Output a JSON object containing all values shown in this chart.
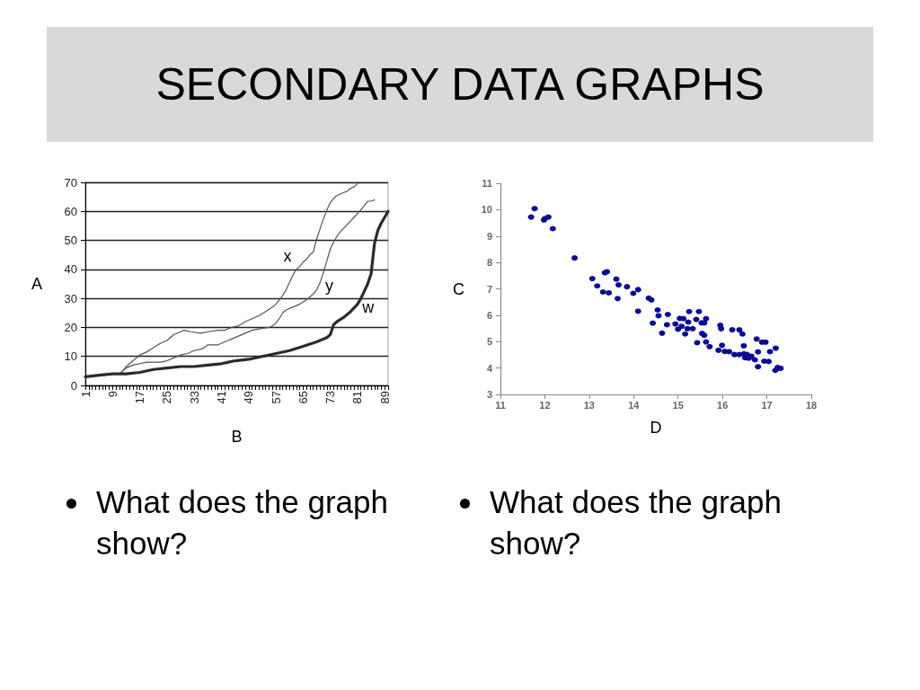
{
  "chart_data": [
    {
      "type": "line",
      "title": "SECONDARY DATA GRAPHS",
      "xlabel": "B",
      "ylabel": "A",
      "annotations": [
        "What does the graph show?"
      ],
      "xlim": [
        1,
        90
      ],
      "xticks": [
        1,
        {
          "value": 2,
          "label": null
        },
        {
          "value": 3,
          "label": null
        },
        {
          "value": 4,
          "label": null
        },
        {
          "value": 5,
          "label": null
        },
        {
          "value": 6,
          "label": null
        },
        {
          "value": 7,
          "label": null
        },
        {
          "value": 8,
          "label": null
        },
        9,
        {
          "value": 10,
          "label": null
        },
        {
          "value": 11,
          "label": null
        },
        {
          "value": 12,
          "label": null
        },
        {
          "value": 13,
          "label": null
        },
        {
          "value": 14,
          "label": null
        },
        {
          "value": 15,
          "label": null
        },
        {
          "value": 16,
          "label": null
        },
        17,
        {
          "value": 18,
          "label": null
        },
        {
          "value": 19,
          "label": null
        },
        {
          "value": 20,
          "label": null
        },
        {
          "value": 21,
          "label": null
        },
        {
          "value": 22,
          "label": null
        },
        {
          "value": 23,
          "label": null
        },
        {
          "value": 24,
          "label": null
        },
        25,
        {
          "value": 26,
          "label": null
        },
        {
          "value": 27,
          "label": null
        },
        {
          "value": 28,
          "label": null
        },
        {
          "value": 29,
          "label": null
        },
        {
          "value": 30,
          "label": null
        },
        {
          "value": 31,
          "label": null
        },
        {
          "value": 32,
          "label": null
        },
        33,
        {
          "value": 34,
          "label": null
        },
        {
          "value": 35,
          "label": null
        },
        {
          "value": 36,
          "label": null
        },
        {
          "value": 37,
          "label": null
        },
        {
          "value": 38,
          "label": null
        },
        {
          "value": 39,
          "label": null
        },
        {
          "value": 40,
          "label": null
        },
        41,
        {
          "value": 42,
          "label": null
        },
        {
          "value": 43,
          "label": null
        },
        {
          "value": 44,
          "label": null
        },
        {
          "value": 45,
          "label": null
        },
        {
          "value": 46,
          "label": null
        },
        {
          "value": 47,
          "label": null
        },
        {
          "value": 48,
          "label": null
        },
        49,
        {
          "value": 50,
          "label": null
        },
        {
          "value": 51,
          "label": null
        },
        {
          "value": 52,
          "label": null
        },
        {
          "value": 53,
          "label": null
        },
        {
          "value": 54,
          "label": null
        },
        {
          "value": 55,
          "label": null
        },
        {
          "value": 56,
          "label": null
        },
        57,
        {
          "value": 58,
          "label": null
        },
        {
          "value": 59,
          "label": null
        },
        {
          "value": 60,
          "label": null
        },
        {
          "value": 61,
          "label": null
        },
        {
          "value": 62,
          "label": null
        },
        {
          "value": 63,
          "label": null
        },
        {
          "value": 64,
          "label": null
        },
        65,
        {
          "value": 66,
          "label": null
        },
        {
          "value": 67,
          "label": null
        },
        {
          "value": 68,
          "label": null
        },
        {
          "value": 69,
          "label": null
        },
        {
          "value": 70,
          "label": null
        },
        {
          "value": 71,
          "label": null
        },
        {
          "value": 72,
          "label": null
        },
        73,
        {
          "value": 74,
          "label": null
        },
        {
          "value": 75,
          "label": null
        },
        {
          "value": 76,
          "label": null
        },
        {
          "value": 77,
          "label": null
        },
        {
          "value": 78,
          "label": null
        },
        {
          "value": 79,
          "label": null
        },
        {
          "value": 80,
          "label": null
        },
        81,
        {
          "value": 82,
          "label": null
        },
        {
          "value": 83,
          "label": null
        },
        {
          "value": 84,
          "label": null
        },
        {
          "value": 85,
          "label": null
        },
        {
          "value": 86,
          "label": null
        },
        {
          "value": 87,
          "label": null
        },
        {
          "value": 88,
          "label": null
        },
        89,
        {
          "value": 90,
          "label": null
        }
      ],
      "ylim": [
        0,
        70
      ],
      "yticks": [
        0,
        10,
        20,
        30,
        40,
        50,
        60,
        70
      ],
      "grid": "y",
      "marker": "none",
      "line_style": "solid",
      "series": [
        {
          "name": "x",
          "color": "#555555",
          "x": [
            11,
            12,
            13,
            15,
            17,
            19,
            21,
            23,
            25,
            27,
            29,
            30,
            32,
            35,
            37,
            40,
            42,
            44,
            46,
            48,
            50,
            52,
            54,
            56,
            57,
            58,
            59,
            60,
            61,
            62,
            63,
            64,
            65,
            66,
            67,
            68,
            69,
            70,
            71,
            72,
            73,
            74,
            75,
            77,
            78,
            79,
            80,
            81
          ],
          "values": [
            4,
            5,
            6.5,
            8.5,
            10.5,
            11.5,
            13,
            14.5,
            15.5,
            17.5,
            18.5,
            19,
            18.5,
            18,
            18.5,
            19,
            19,
            20,
            20.5,
            22,
            23,
            24,
            25.5,
            27,
            28,
            29.5,
            31,
            33,
            35.5,
            38,
            40,
            41,
            42.5,
            43.5,
            45,
            46,
            50.5,
            54,
            57.5,
            60.5,
            63,
            64.5,
            65.5,
            66.5,
            67,
            68,
            68.5,
            69.5
          ]
        },
        {
          "name": "y",
          "color": "#555555",
          "x": [
            11,
            12,
            13,
            15,
            17,
            19,
            23,
            25,
            27,
            29,
            31,
            33,
            35,
            36,
            37,
            40,
            42,
            44,
            46,
            48,
            50,
            52,
            55,
            56,
            57,
            58,
            59,
            60,
            62,
            64,
            66,
            68,
            69,
            70,
            71,
            72,
            73,
            74,
            75,
            76,
            78,
            80,
            82,
            84,
            85,
            86
          ],
          "values": [
            4,
            5,
            6,
            7,
            7.5,
            8,
            8,
            8.5,
            9.5,
            10.5,
            11,
            12,
            12.5,
            13,
            14,
            14,
            15,
            16,
            17,
            18,
            19,
            19.5,
            20,
            20.5,
            21.5,
            23,
            25,
            26,
            27,
            28,
            29.5,
            31.5,
            33,
            35.5,
            39,
            43,
            47,
            49.5,
            51.5,
            53,
            55.5,
            58,
            60.5,
            63.5,
            63.5,
            64
          ]
        },
        {
          "name": "w",
          "color": "#2b2b2b",
          "x": [
            1,
            5,
            9,
            13,
            17,
            21,
            25,
            29,
            33,
            37,
            41,
            45,
            49,
            53,
            57,
            61,
            65,
            69,
            72,
            73,
            74,
            75,
            77,
            79,
            81,
            82,
            83,
            84,
            85,
            86,
            87,
            88,
            89,
            90
          ],
          "values": [
            3,
            3.5,
            4,
            4,
            4.5,
            5.5,
            6,
            6.5,
            6.5,
            7,
            7.5,
            8.5,
            9,
            10,
            11,
            12,
            13.5,
            15,
            16.5,
            17.5,
            21,
            22,
            23.5,
            25.5,
            28,
            30,
            32.5,
            35,
            38.5,
            49,
            53.5,
            56,
            58,
            60
          ]
        }
      ]
    },
    {
      "type": "scatter",
      "xlabel": "D",
      "ylabel": "C",
      "annotations": [
        "What does the graph show?"
      ],
      "xlim": [
        11,
        18
      ],
      "xticks": [
        11,
        12,
        13,
        14,
        15,
        16,
        17,
        18
      ],
      "ylim": [
        3,
        11
      ],
      "yticks": [
        3,
        4,
        5,
        6,
        7,
        8,
        9,
        10,
        11
      ],
      "marker": "circle",
      "color": "#0a0a96",
      "x": [
        11.69,
        11.77,
        11.98,
        12.0,
        12.08,
        12.18,
        12.67,
        13.07,
        13.18,
        13.31,
        13.35,
        13.4,
        13.44,
        13.61,
        13.66,
        13.64,
        13.85,
        13.99,
        14.1,
        14.1,
        14.34,
        14.4,
        14.43,
        14.54,
        14.56,
        14.64,
        14.75,
        14.77,
        14.94,
        15.0,
        15.04,
        15.08,
        15.12,
        15.16,
        15.21,
        15.23,
        15.25,
        15.33,
        15.41,
        15.43,
        15.47,
        15.53,
        15.54,
        15.59,
        15.59,
        15.63,
        15.63,
        15.71,
        15.91,
        15.95,
        15.97,
        15.99,
        16.05,
        16.15,
        16.22,
        16.27,
        16.38,
        16.38,
        16.45,
        16.48,
        16.48,
        16.51,
        16.55,
        16.59,
        16.65,
        16.73,
        16.77,
        16.8,
        16.8,
        16.89,
        16.97,
        16.94,
        17.04,
        17.07,
        17.2,
        17.19,
        17.24,
        17.31,
        17.26
      ],
      "values": [
        9.72,
        10.04,
        9.61,
        9.66,
        9.72,
        9.28,
        8.17,
        7.39,
        7.11,
        6.88,
        7.61,
        7.65,
        6.85,
        7.37,
        7.15,
        6.63,
        7.08,
        6.83,
        6.97,
        6.15,
        6.65,
        6.58,
        5.7,
        6.2,
        5.98,
        5.32,
        5.64,
        6.03,
        5.67,
        5.47,
        5.88,
        5.58,
        5.87,
        5.29,
        5.49,
        5.74,
        6.14,
        5.49,
        5.84,
        4.96,
        6.14,
        5.71,
        5.31,
        5.71,
        5.24,
        5.87,
        4.99,
        4.81,
        4.67,
        5.62,
        5.49,
        4.86,
        4.63,
        4.62,
        5.45,
        4.51,
        5.45,
        4.51,
        5.29,
        4.84,
        4.54,
        4.39,
        4.51,
        4.37,
        4.45,
        4.31,
        5.1,
        4.61,
        4.05,
        4.98,
        4.98,
        4.26,
        4.25,
        4.62,
        4.75,
        3.91,
        4.02,
        3.99,
        4.0
      ]
    }
  ]
}
